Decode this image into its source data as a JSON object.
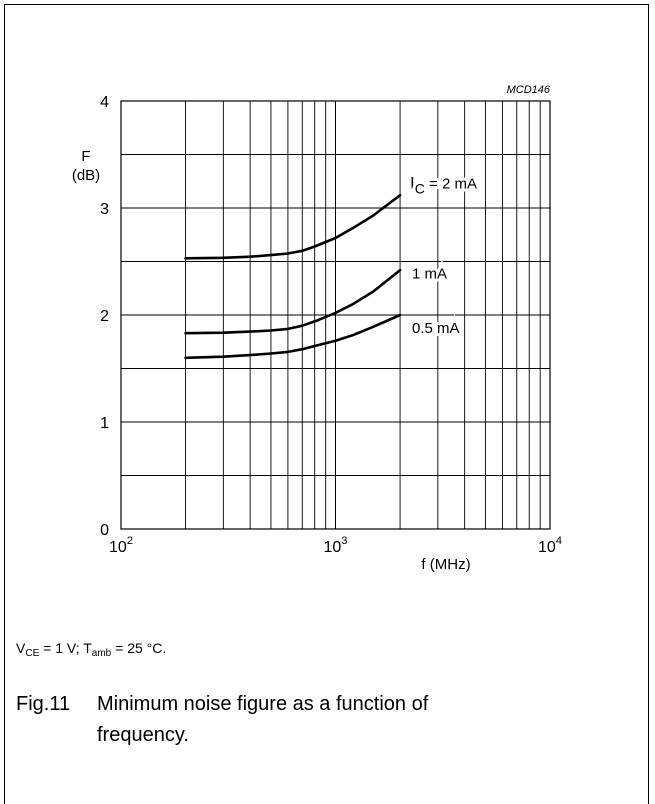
{
  "chart_data": {
    "type": "line",
    "id_label": "MCD146",
    "xlabel": "f (MHz)",
    "ylabel": "F",
    "yunit": "(dB)",
    "x_scale": "log",
    "xlim": [
      100,
      10000
    ],
    "ylim": [
      0,
      4
    ],
    "x_ticks": [
      {
        "value": 100,
        "base": "10",
        "exp": "2"
      },
      {
        "value": 1000,
        "base": "10",
        "exp": "3"
      },
      {
        "value": 10000,
        "base": "10",
        "exp": "4"
      }
    ],
    "y_ticks": [
      "0",
      "1",
      "2",
      "3",
      "4"
    ],
    "grid": true,
    "series": [
      {
        "name": "IC = 2 mA",
        "label_main": "I",
        "label_sub": "C",
        "label_rest": " = 2 mA",
        "x": [
          200,
          300,
          400,
          500,
          600,
          700,
          800,
          1000,
          1200,
          1500,
          2000
        ],
        "y": [
          2.53,
          2.535,
          2.545,
          2.56,
          2.575,
          2.6,
          2.64,
          2.72,
          2.81,
          2.93,
          3.12
        ]
      },
      {
        "name": "1 mA",
        "label_main": "1 mA",
        "label_sub": "",
        "label_rest": "",
        "x": [
          200,
          300,
          400,
          500,
          600,
          700,
          800,
          1000,
          1200,
          1500,
          2000
        ],
        "y": [
          1.83,
          1.835,
          1.845,
          1.855,
          1.87,
          1.9,
          1.94,
          2.02,
          2.1,
          2.22,
          2.42
        ]
      },
      {
        "name": "0.5 mA",
        "label_main": "0.5 mA",
        "label_sub": "",
        "label_rest": "",
        "x": [
          200,
          300,
          400,
          500,
          600,
          700,
          800,
          1000,
          1200,
          1500,
          2000
        ],
        "y": [
          1.6,
          1.61,
          1.625,
          1.64,
          1.655,
          1.68,
          1.71,
          1.76,
          1.81,
          1.89,
          2.0
        ]
      }
    ]
  },
  "conditions": {
    "v": "V",
    "v_sub": "CE",
    "v_rest": " = 1 V; T",
    "t_sub": "amb",
    "t_rest": " = 25 °C."
  },
  "caption": {
    "number": "Fig.11",
    "line1": "Minimum noise figure as a function of",
    "line2": "frequency."
  }
}
